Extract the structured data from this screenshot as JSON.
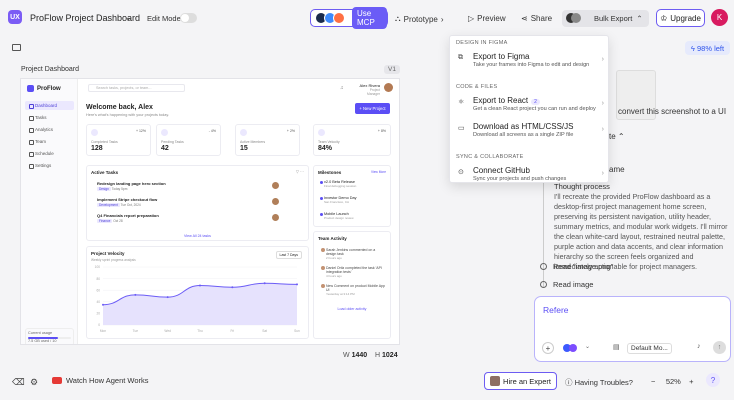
{
  "topbar": {
    "logo": "UX",
    "project_title": "ProFlow Project Dashboard",
    "edit_mode": "Edit Mode",
    "use_mcp": "Use MCP",
    "prototype": "Prototype",
    "preview": "Preview",
    "share": "Share",
    "bulk_export": "Bulk Export",
    "upgrade": "Upgrade",
    "avatar": "K"
  },
  "canvas": {
    "frame_label": "Project Dashboard",
    "frame_tag": "V1",
    "width_label": "W",
    "width": "1440",
    "height_label": "H",
    "height": "1024"
  },
  "app": {
    "brand": "ProFlow",
    "nav": [
      "Dashboard",
      "Tasks",
      "Analytics",
      "Team",
      "Schedule",
      "Settings"
    ],
    "plan": {
      "label": "Current usage",
      "value": "7.5 GB used",
      "limit": "/ 10"
    },
    "search_placeholder": "Search tasks, projects, or team...",
    "user": {
      "name": "Alex Rivera",
      "role": "Project Manager"
    },
    "welcome": "Welcome back, Alex",
    "welcome_sub": "Here's what's happening with your projects today.",
    "new_project": "+ New Project",
    "stats": [
      {
        "label": "Completed Tasks",
        "value": "128",
        "pct": "+ 12%"
      },
      {
        "label": "Pending Tasks",
        "value": "42",
        "pct": "- 4%"
      },
      {
        "label": "Active Members",
        "value": "15",
        "pct": "+ 2%"
      },
      {
        "label": "Team Velocity",
        "value": "84%",
        "pct": "+ 8%"
      }
    ],
    "active_tasks": {
      "title": "Active Tasks",
      "items": [
        {
          "title": "Redesign landing page hero section",
          "tag": "Design",
          "meta": "Today 5pm"
        },
        {
          "title": "Implement Stripe checkout flow",
          "tag": "Development",
          "meta": "Tue Oct, 2024"
        },
        {
          "title": "Q4 Financials report preparation",
          "tag": "Finance",
          "meta": "Oct 28"
        }
      ],
      "view_all": "View All 24 tasks"
    },
    "milestones": {
      "title": "Milestones",
      "view_all": "View More",
      "items": [
        {
          "title": "v2.0 Beta Release",
          "sub": "Final debugging session"
        },
        {
          "title": "Investor Demo Day",
          "sub": "San Francisco, CA"
        },
        {
          "title": "Mobile Launch",
          "sub": "Product design review"
        }
      ]
    },
    "velocity": {
      "title": "Project Velocity",
      "sub": "Weekly sprint progress analysis",
      "range": "Last 7 Days"
    },
    "activity": {
      "title": "Team Activity",
      "items": [
        {
          "text": "Sarah Jenkins commented on a design task",
          "time": "2 hours ago"
        },
        {
          "text": "Daniel Ortiz completed the task 'API integration tests'",
          "time": "4 hours ago"
        },
        {
          "text": "New Comment on product Mobile App UI",
          "time": "Yesterday at 3:14 PM"
        }
      ],
      "load_more": "Load older activity"
    }
  },
  "chart_data": {
    "type": "area",
    "title": "Project Velocity",
    "x": [
      "Mon",
      "Tue",
      "Wed",
      "Thu",
      "Fri",
      "Sat",
      "Sun"
    ],
    "series": [
      {
        "values": [
          35,
          52,
          48,
          68,
          65,
          72,
          70
        ]
      }
    ],
    "ylim": [
      0,
      100
    ],
    "yticks": [
      "100",
      "80",
      "60",
      "40",
      "20",
      "0"
    ]
  },
  "dropdown": {
    "sec_figma": "DESIGN IN FIGMA",
    "export_figma": {
      "title": "Export to Figma",
      "sub": "Take your frames into Figma to edit and design"
    },
    "sec_code": "CODE & FILES",
    "export_react": {
      "title": "Export to React",
      "badge": "2",
      "sub": "Get a clean React project you can run and deploy"
    },
    "download_html": {
      "title": "Download as HTML/CSS/JS",
      "sub": "Download all screens as a single ZIP file"
    },
    "sec_sync": "SYNC & COLLABORATE",
    "github": {
      "title": "Connect GitHub",
      "sub": "Sync your projects and push changes"
    }
  },
  "right_panel": {
    "credits": "98% left",
    "convert": "convert this screenshot to a UI",
    "snip_te": "te",
    "snip_ame": "ame",
    "thought_heading": "Thought process",
    "thought": "I'll recreate the provided ProFlow dashboard as a desktop-first project management home screen, preserving its persistent navigation, utility header, summary metrics, and modular work widgets. I'll mirror the clean white-card layout, restrained neutral palette, purple action and data accents, and clear information hierarchy so the screen feels organized and immediately actionable for project managers.",
    "steps": [
      "Read \"image.png\"",
      "Read image"
    ],
    "composer_placeholder": "Refere",
    "model": "Default Mo..."
  },
  "bottom": {
    "watch": "Watch How Agent Works",
    "hire": "Hire an Expert",
    "trouble": "Having Troubles?",
    "zoom": "52%"
  }
}
